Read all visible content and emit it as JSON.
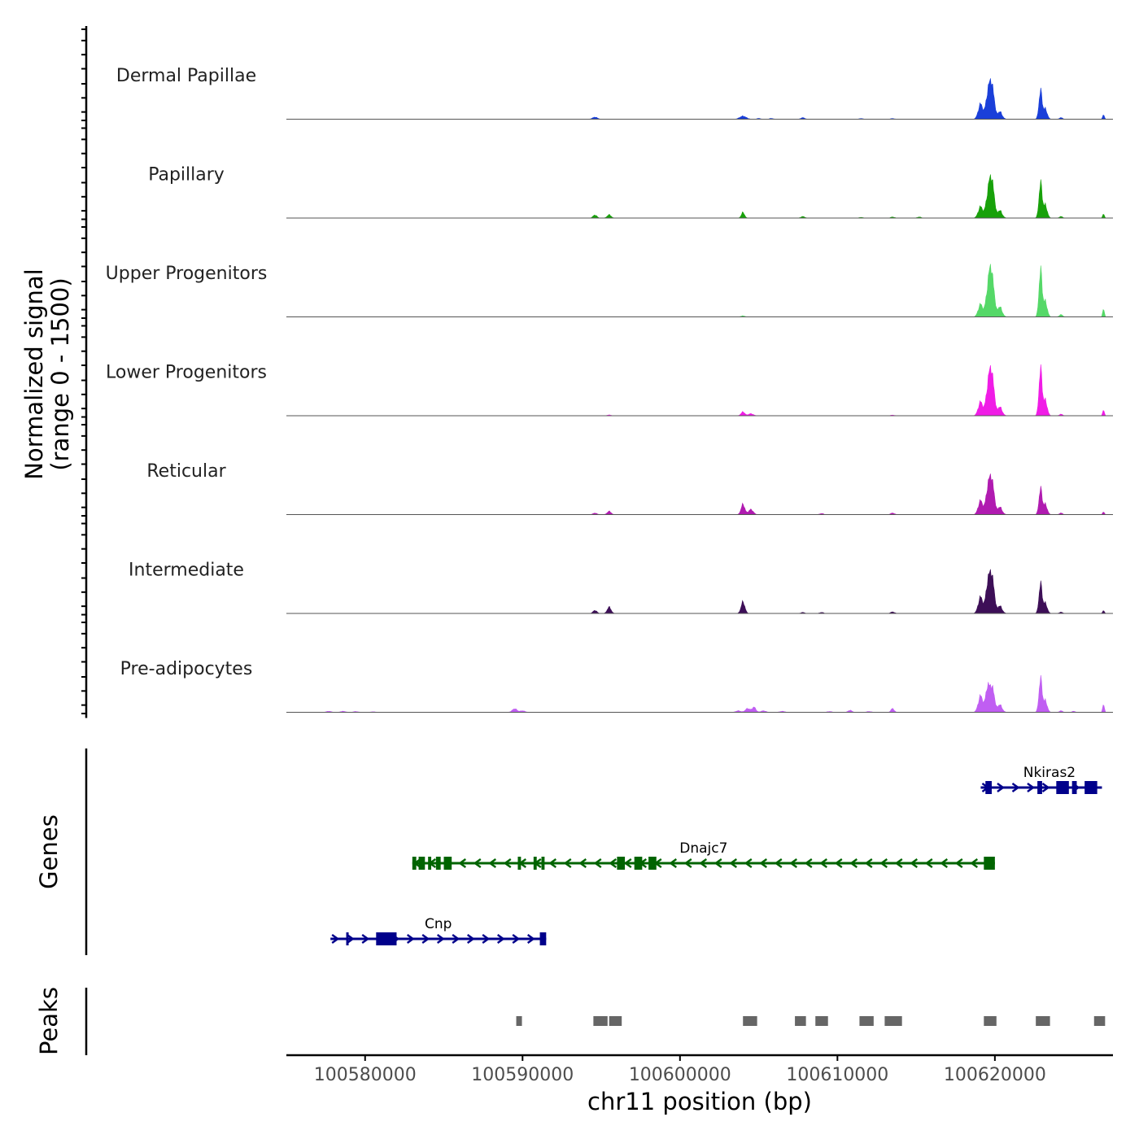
{
  "chart_data": {
    "type": "area",
    "chromosome": "chr11",
    "xlim": [
      100575000,
      100627500
    ],
    "x_ticks": [
      100580000,
      100590000,
      100600000,
      100610000,
      100620000
    ],
    "x_tick_labels": [
      "100580000",
      "100590000",
      "100600000",
      "100610000",
      "100620000"
    ],
    "xlabel": "chr11 position (bp)",
    "ylabel": "Normalized signal",
    "ylabel_range": "(range 0 - 1500)",
    "ylim": [
      0,
      1500
    ],
    "tracks": [
      {
        "name": "Dermal Papillae",
        "color": "#1a3fd9",
        "peaks": [
          [
            100594600,
            80,
            150
          ],
          [
            100604000,
            120,
            200
          ],
          [
            100605000,
            30,
            120
          ],
          [
            100605800,
            30,
            120
          ],
          [
            100607800,
            60,
            120
          ],
          [
            100611500,
            25,
            120
          ],
          [
            100613500,
            25,
            120
          ],
          [
            100619100,
            600,
            150
          ],
          [
            100619500,
            830,
            100
          ],
          [
            100619700,
            1400,
            90
          ],
          [
            100619900,
            1000,
            100
          ],
          [
            100620300,
            300,
            150
          ],
          [
            100622900,
            1100,
            100
          ],
          [
            100623200,
            400,
            120
          ],
          [
            100624200,
            60,
            100
          ],
          [
            100626900,
            200,
            50
          ]
        ]
      },
      {
        "name": "Papillary",
        "color": "#18a10a",
        "peaks": [
          [
            100594600,
            120,
            120
          ],
          [
            100595500,
            130,
            120
          ],
          [
            100604000,
            220,
            100
          ],
          [
            100607800,
            60,
            120
          ],
          [
            100611500,
            25,
            120
          ],
          [
            100613500,
            40,
            120
          ],
          [
            100615200,
            40,
            120
          ],
          [
            100619100,
            450,
            150
          ],
          [
            100619500,
            750,
            100
          ],
          [
            100619700,
            1500,
            90
          ],
          [
            100619900,
            1100,
            100
          ],
          [
            100620300,
            300,
            150
          ],
          [
            100622900,
            1350,
            100
          ],
          [
            100623200,
            500,
            120
          ],
          [
            100624200,
            60,
            100
          ],
          [
            100626900,
            180,
            50
          ]
        ]
      },
      {
        "name": "Upper Progenitors",
        "color": "#55d868",
        "peaks": [
          [
            100604000,
            40,
            120
          ],
          [
            100619100,
            500,
            150
          ],
          [
            100619500,
            900,
            100
          ],
          [
            100619700,
            1850,
            90
          ],
          [
            100619900,
            1200,
            100
          ],
          [
            100620300,
            400,
            150
          ],
          [
            100622900,
            1800,
            100
          ],
          [
            100623200,
            600,
            120
          ],
          [
            100624200,
            90,
            100
          ],
          [
            100626900,
            350,
            50
          ]
        ]
      },
      {
        "name": "Lower Progenitors",
        "color": "#f01ce6",
        "peaks": [
          [
            100595500,
            30,
            120
          ],
          [
            100604000,
            150,
            120
          ],
          [
            100604500,
            80,
            150
          ],
          [
            100613500,
            25,
            120
          ],
          [
            100619100,
            550,
            150
          ],
          [
            100619500,
            900,
            100
          ],
          [
            100619700,
            1750,
            90
          ],
          [
            100619900,
            1200,
            100
          ],
          [
            100620300,
            350,
            150
          ],
          [
            100622900,
            1800,
            100
          ],
          [
            100623200,
            600,
            120
          ],
          [
            100624200,
            60,
            100
          ],
          [
            100626900,
            250,
            50
          ]
        ]
      },
      {
        "name": "Reticular",
        "color": "#b01bb0",
        "peaks": [
          [
            100594600,
            60,
            120
          ],
          [
            100595500,
            130,
            120
          ],
          [
            100604000,
            400,
            120
          ],
          [
            100604500,
            200,
            150
          ],
          [
            100609000,
            40,
            120
          ],
          [
            100613500,
            60,
            120
          ],
          [
            100619100,
            550,
            150
          ],
          [
            100619500,
            850,
            100
          ],
          [
            100619700,
            1400,
            90
          ],
          [
            100619900,
            1000,
            100
          ],
          [
            100620300,
            300,
            150
          ],
          [
            100622900,
            1000,
            100
          ],
          [
            100623200,
            400,
            120
          ],
          [
            100624200,
            60,
            100
          ],
          [
            100626900,
            120,
            50
          ]
        ]
      },
      {
        "name": "Intermediate",
        "color": "#3d0f57",
        "peaks": [
          [
            100594600,
            120,
            120
          ],
          [
            100595500,
            250,
            120
          ],
          [
            100604000,
            450,
            120
          ],
          [
            100607800,
            40,
            120
          ],
          [
            100609000,
            40,
            120
          ],
          [
            100613500,
            60,
            120
          ],
          [
            100619100,
            650,
            150
          ],
          [
            100619500,
            1000,
            100
          ],
          [
            100619700,
            1500,
            90
          ],
          [
            100619900,
            1100,
            100
          ],
          [
            100620300,
            300,
            150
          ],
          [
            100622900,
            1150,
            100
          ],
          [
            100623200,
            400,
            120
          ],
          [
            100624200,
            50,
            100
          ],
          [
            100626900,
            130,
            50
          ]
        ]
      },
      {
        "name": "Pre-adipocytes",
        "color": "#c05ef2",
        "peaks": [
          [
            100577700,
            40,
            150
          ],
          [
            100578600,
            40,
            150
          ],
          [
            100579400,
            30,
            150
          ],
          [
            100580500,
            20,
            150
          ],
          [
            100589500,
            140,
            150
          ],
          [
            100590000,
            60,
            150
          ],
          [
            100603700,
            60,
            150
          ],
          [
            100604300,
            150,
            150
          ],
          [
            100604700,
            200,
            120
          ],
          [
            100605300,
            60,
            150
          ],
          [
            100606500,
            40,
            150
          ],
          [
            100609500,
            30,
            150
          ],
          [
            100610800,
            80,
            120
          ],
          [
            100612000,
            30,
            150
          ],
          [
            100613500,
            150,
            100
          ],
          [
            100619100,
            650,
            150
          ],
          [
            100619500,
            900,
            100
          ],
          [
            100619700,
            900,
            90
          ],
          [
            100619900,
            800,
            100
          ],
          [
            100620300,
            300,
            150
          ],
          [
            100622900,
            1300,
            100
          ],
          [
            100623200,
            450,
            120
          ],
          [
            100624200,
            60,
            100
          ],
          [
            100625000,
            40,
            100
          ],
          [
            100626900,
            350,
            50
          ]
        ]
      }
    ],
    "genes": [
      {
        "name": "Nkiras2",
        "strand": "+",
        "color": "#00008b",
        "start": 100619100,
        "end": 100626800,
        "row": 1,
        "exons": [
          [
            100619400,
            100619800
          ],
          [
            100622700,
            100623000
          ],
          [
            100623900,
            100624700
          ],
          [
            100624900,
            100625200
          ],
          [
            100625700,
            100626500
          ]
        ]
      },
      {
        "name": "Dnajc7",
        "strand": "-",
        "color": "#006400",
        "start": 100583000,
        "end": 100620000,
        "row": 2,
        "exons": [
          [
            100583000,
            100583250
          ],
          [
            100583400,
            100583800
          ],
          [
            100584000,
            100584200
          ],
          [
            100584500,
            100584800
          ],
          [
            100585000,
            100585500
          ],
          [
            100589700,
            100589900
          ],
          [
            100590700,
            100590900
          ],
          [
            100591200,
            100591400
          ],
          [
            100596000,
            100596500
          ],
          [
            100597100,
            100597600
          ],
          [
            100598000,
            100598500
          ],
          [
            100619300,
            100620000
          ]
        ]
      },
      {
        "name": "Cnp",
        "strand": "+",
        "color": "#00008b",
        "start": 100577800,
        "end": 100591500,
        "row": 3,
        "exons": [
          [
            100578800,
            100578900
          ],
          [
            100580700,
            100582000
          ],
          [
            100591100,
            100591500
          ]
        ]
      }
    ],
    "peak_regions": [
      [
        100589600,
        100589900
      ],
      [
        100594500,
        100595400
      ],
      [
        100595500,
        100596300
      ],
      [
        100604000,
        100604900
      ],
      [
        100607300,
        100608000
      ],
      [
        100608600,
        100609400
      ],
      [
        100611400,
        100612300
      ],
      [
        100613000,
        100614100
      ],
      [
        100619300,
        100620100
      ],
      [
        100622600,
        100623500
      ],
      [
        100626300,
        100627000
      ]
    ],
    "side_titles": {
      "genes": "Genes",
      "peaks": "Peaks"
    },
    "colors": {
      "peak_region": "#666666",
      "baseline": "#555555",
      "axis": "#000000"
    }
  }
}
